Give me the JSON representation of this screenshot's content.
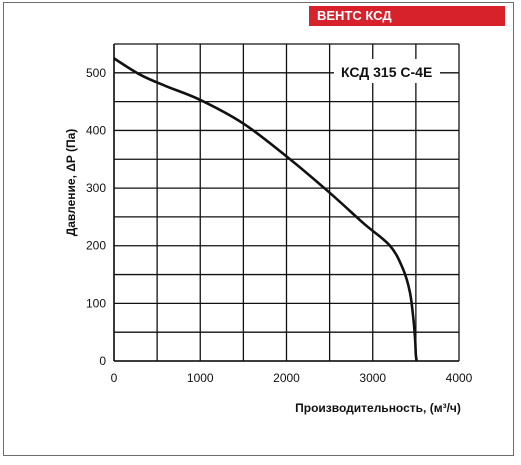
{
  "header": {
    "brand_label": "ВЕНТС КСД",
    "brand_color": "#d7222b"
  },
  "chart_data": {
    "type": "line",
    "title": "КСД 315 С-4Е",
    "xlabel": "Производительность, (м³/ч)",
    "ylabel": "Давление, ΔP (Па)",
    "xlim": [
      0,
      4000
    ],
    "ylim": [
      0,
      550
    ],
    "x_ticks": [
      0,
      1000,
      2000,
      3000,
      4000
    ],
    "y_ticks": [
      0,
      100,
      200,
      300,
      400,
      500
    ],
    "x_ticks_text": [
      "0",
      "1000",
      "2000",
      "3000",
      "4000"
    ],
    "y_ticks_text": [
      "0",
      "100",
      "200",
      "300",
      "400",
      "500"
    ],
    "grid": true,
    "series": [
      {
        "x": [
          0,
          300,
          600,
          1000,
          1500,
          2000,
          2500,
          2900,
          3200,
          3350,
          3430,
          3470,
          3490,
          3500,
          3510
        ],
        "y": [
          525,
          497,
          477,
          453,
          412,
          355,
          292,
          238,
          200,
          160,
          120,
          75,
          40,
          10,
          0
        ],
        "color": "#111111"
      }
    ]
  }
}
